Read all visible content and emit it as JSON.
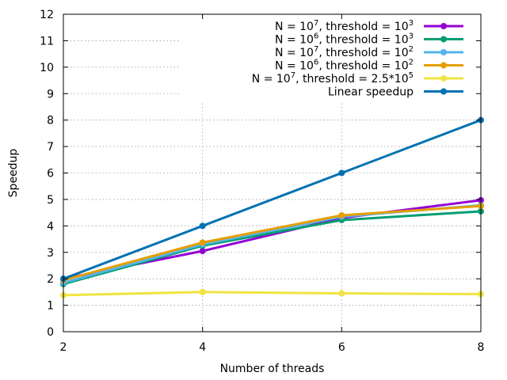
{
  "chart_data": {
    "type": "line",
    "title": "",
    "xlabel": "Number of threads",
    "ylabel": "Speedup",
    "x": [
      2,
      4,
      6,
      8
    ],
    "xlim": [
      2,
      8
    ],
    "ylim": [
      0,
      12
    ],
    "xticks": [
      2,
      4,
      6,
      8
    ],
    "yticks": [
      0,
      1,
      2,
      3,
      4,
      5,
      6,
      7,
      8,
      9,
      10,
      11,
      12
    ],
    "grid": true,
    "legend_position": "top-right",
    "series": [
      {
        "name": "N = 10^7, threshold = 10^3",
        "legend": {
          "pre": "N = 10",
          "sup1": "7",
          "mid": ", threshold = 10",
          "sup2": "3"
        },
        "color": "#9400d3",
        "values": [
          2.0,
          3.05,
          4.3,
          4.97
        ]
      },
      {
        "name": "N = 10^6, threshold = 10^3",
        "legend": {
          "pre": "N = 10",
          "sup1": "6",
          "mid": ", threshold = 10",
          "sup2": "3"
        },
        "color": "#009e73",
        "values": [
          1.8,
          3.25,
          4.22,
          4.55
        ]
      },
      {
        "name": "N = 10^7, threshold = 10^2",
        "legend": {
          "pre": "N = 10",
          "sup1": "7",
          "mid": ", threshold = 10",
          "sup2": "2"
        },
        "color": "#56b4e9",
        "values": [
          1.85,
          3.3,
          4.35,
          4.78
        ]
      },
      {
        "name": "N = 10^6, threshold = 10^2",
        "legend": {
          "pre": "N = 10",
          "sup1": "6",
          "mid": ", threshold = 10",
          "sup2": "2"
        },
        "color": "#e69f00",
        "values": [
          1.95,
          3.37,
          4.4,
          4.75
        ]
      },
      {
        "name": "N = 10^7, threshold = 2.5*10^5",
        "legend": {
          "pre": "N = 10",
          "sup1": "7",
          "mid": ", threshold = 2.5*10",
          "sup2": "5"
        },
        "color": "#f0e442",
        "values": [
          1.38,
          1.5,
          1.45,
          1.42
        ]
      },
      {
        "name": "Linear speedup",
        "legend": {
          "pre": "Linear speedup",
          "sup1": "",
          "mid": "",
          "sup2": ""
        },
        "color": "#0072b2",
        "values": [
          2,
          4,
          6,
          8
        ]
      }
    ]
  }
}
